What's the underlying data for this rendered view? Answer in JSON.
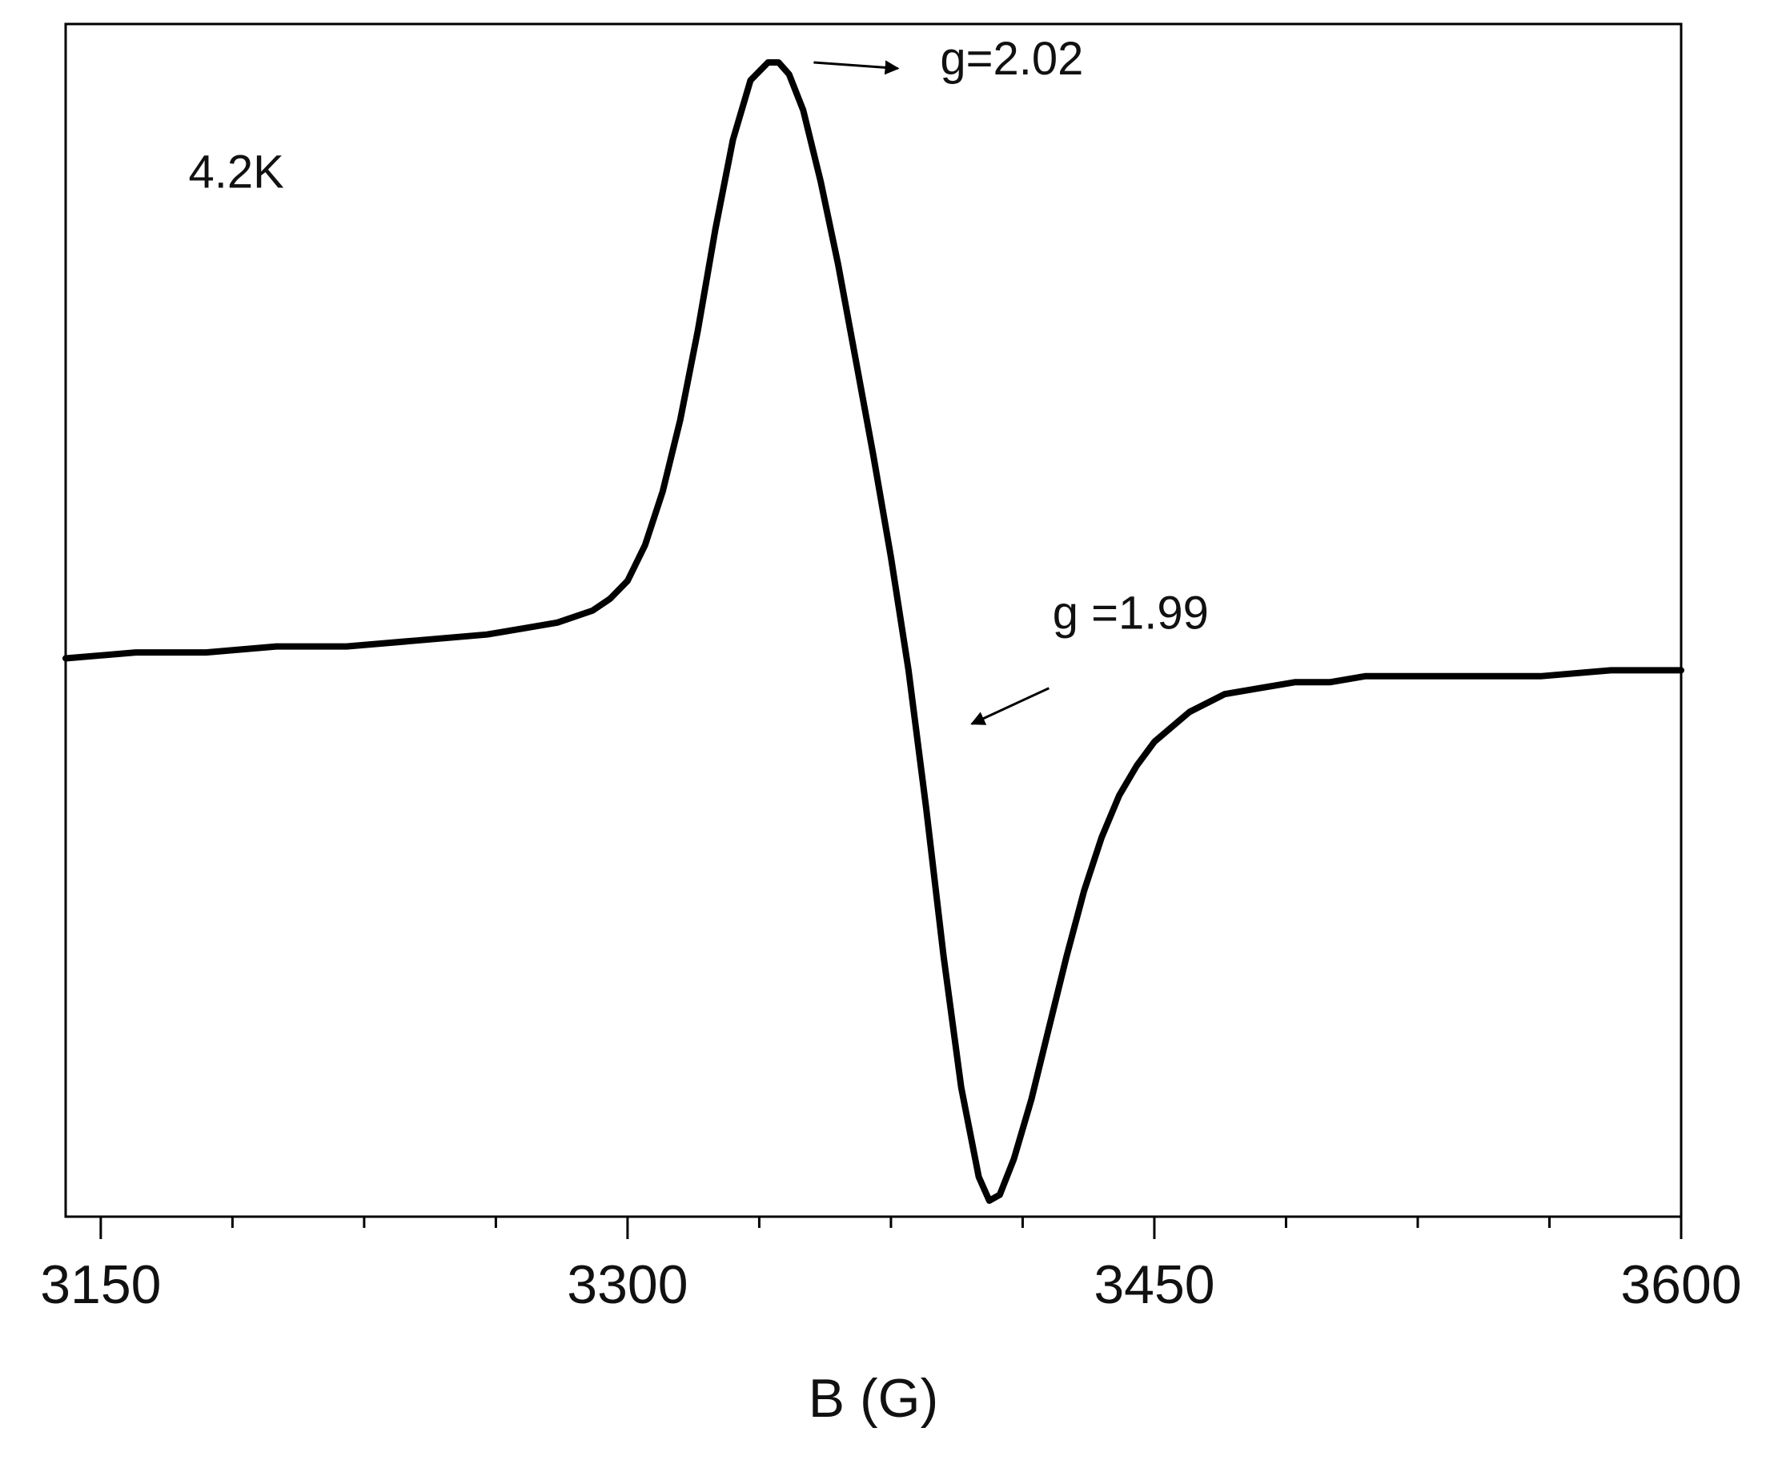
{
  "chart_data": {
    "type": "line",
    "title": "",
    "xlabel": "B (G)",
    "ylabel": "",
    "xlim": [
      3140,
      3600
    ],
    "xticks": [
      3150,
      3300,
      3450,
      3600
    ],
    "xtick_labels": [
      "3150",
      "3300",
      "3450",
      "3600"
    ],
    "x_minor_step": 37.5,
    "y_axis_shown": false,
    "grid": false,
    "legend": "none",
    "annotations": [
      {
        "text": "4.2K",
        "x": 3175,
        "y": 0.79
      },
      {
        "text": "g=2.02",
        "x": 3389,
        "y": 0.98,
        "arrow_from": [
          3353,
          1.0
        ],
        "arrow_to": [
          3377,
          0.99
        ]
      },
      {
        "text": "g =1.99",
        "x": 3421,
        "y": 0.05,
        "arrow_from": [
          3420,
          -0.05
        ],
        "arrow_to": [
          3398,
          -0.11
        ]
      }
    ],
    "series": [
      {
        "color": "#000000",
        "x": [
          3140,
          3160,
          3180,
          3200,
          3220,
          3240,
          3260,
          3270,
          3280,
          3290,
          3295,
          3300,
          3305,
          3310,
          3315,
          3320,
          3325,
          3330,
          3335,
          3340,
          3343,
          3346,
          3350,
          3355,
          3360,
          3365,
          3370,
          3375,
          3380,
          3385,
          3390,
          3395,
          3400,
          3403,
          3406,
          3410,
          3415,
          3420,
          3425,
          3430,
          3435,
          3440,
          3445,
          3450,
          3460,
          3470,
          3480,
          3490,
          3500,
          3510,
          3520,
          3530,
          3540,
          3560,
          3580,
          3600
        ],
        "y": [
          0.0,
          0.01,
          0.01,
          0.02,
          0.02,
          0.03,
          0.04,
          0.05,
          0.06,
          0.08,
          0.1,
          0.13,
          0.19,
          0.28,
          0.4,
          0.55,
          0.72,
          0.87,
          0.97,
          1.0,
          1.0,
          0.98,
          0.92,
          0.8,
          0.66,
          0.5,
          0.34,
          0.17,
          -0.02,
          -0.25,
          -0.5,
          -0.72,
          -0.87,
          -0.91,
          -0.9,
          -0.84,
          -0.74,
          -0.62,
          -0.5,
          -0.39,
          -0.3,
          -0.23,
          -0.18,
          -0.14,
          -0.09,
          -0.06,
          -0.05,
          -0.04,
          -0.04,
          -0.03,
          -0.03,
          -0.03,
          -0.03,
          -0.03,
          -0.02,
          -0.02
        ]
      }
    ]
  }
}
